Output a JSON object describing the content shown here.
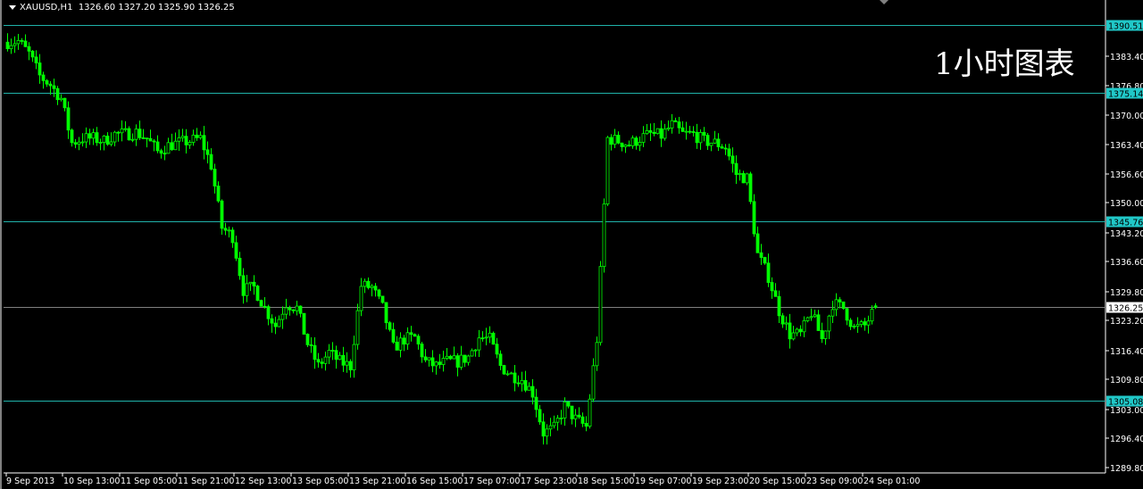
{
  "window": {
    "symbol_title": "XAUUSD,H1",
    "ohlc": "1326.60 1327.20 1325.90 1326.25",
    "watermark": "1小时图表"
  },
  "colors": {
    "background": "#000000",
    "candle": "#00ff00",
    "hline": "#20b2aa",
    "hline_label_bg": "#20c8c8",
    "current_price_line": "#808080",
    "axis": "#ffffff"
  },
  "chart_data": {
    "type": "candlestick",
    "symbol": "XAUUSD",
    "timeframe": "H1",
    "ylim": [
      1289.8,
      1390.51
    ],
    "grid": false,
    "y_ticks": [
      "1383.40",
      "1376.80",
      "1370.00",
      "1363.40",
      "1356.60",
      "1350.00",
      "1343.20",
      "1336.60",
      "1329.80",
      "1323.20",
      "1316.40",
      "1309.80",
      "1303.00",
      "1296.40",
      "1289.80"
    ],
    "x_ticks": [
      "9 Sep 2013",
      "10 Sep 13:00",
      "11 Sep 05:00",
      "11 Sep 21:00",
      "12 Sep 13:00",
      "13 Sep 05:00",
      "13 Sep 21:00",
      "16 Sep 15:00",
      "17 Sep 07:00",
      "17 Sep 23:00",
      "18 Sep 15:00",
      "19 Sep 07:00",
      "19 Sep 23:00",
      "20 Sep 15:00",
      "23 Sep 09:00",
      "24 Sep 01:00"
    ],
    "close_path_every_3_bars": [
      1386.6,
      1386.85,
      1384.0,
      1378.9,
      1376.9,
      1373.8,
      1363.7,
      1364.7,
      1364.7,
      1364.1,
      1365.7,
      1365.7,
      1366.1,
      1364.7,
      1361.7,
      1363.1,
      1363.7,
      1364.1,
      1364.7,
      1358.6,
      1344.4,
      1342.4,
      1330.2,
      1330.8,
      1326.1,
      1322.1,
      1327.2,
      1326.1,
      1318.0,
      1312.9,
      1316.0,
      1313.9,
      1312.9,
      1331.2,
      1330.8,
      1326.1,
      1317.0,
      1319.0,
      1319.4,
      1313.9,
      1312.9,
      1313.9,
      1313.9,
      1315.0,
      1319.4,
      1319.0,
      1312.9,
      1310.9,
      1309.9,
      1306.8,
      1297.7,
      1298.7,
      1303.8,
      1300.8,
      1299.1,
      1319.0,
      1364.7,
      1364.1,
      1363.3,
      1364.7,
      1365.7,
      1365.3,
      1367.8,
      1365.7,
      1365.7,
      1364.1,
      1363.7,
      1362.7,
      1356.6,
      1355.6,
      1338.3,
      1333.3,
      1325.5,
      1320.1,
      1320.1,
      1325.1,
      1319.0,
      1327.2,
      1326.1,
      1321.5,
      1322.1,
      1326.1
    ],
    "last_bar": {
      "open": 1326.6,
      "high": 1327.2,
      "low": 1325.9,
      "close": 1326.25
    },
    "horizontal_lines": [
      {
        "price": "1390.51",
        "kind": "level"
      },
      {
        "price": "1375.14",
        "kind": "level"
      },
      {
        "price": "1345.76",
        "kind": "level"
      },
      {
        "price": "1305.08",
        "kind": "level"
      },
      {
        "price": "1326.25",
        "kind": "current"
      }
    ]
  }
}
